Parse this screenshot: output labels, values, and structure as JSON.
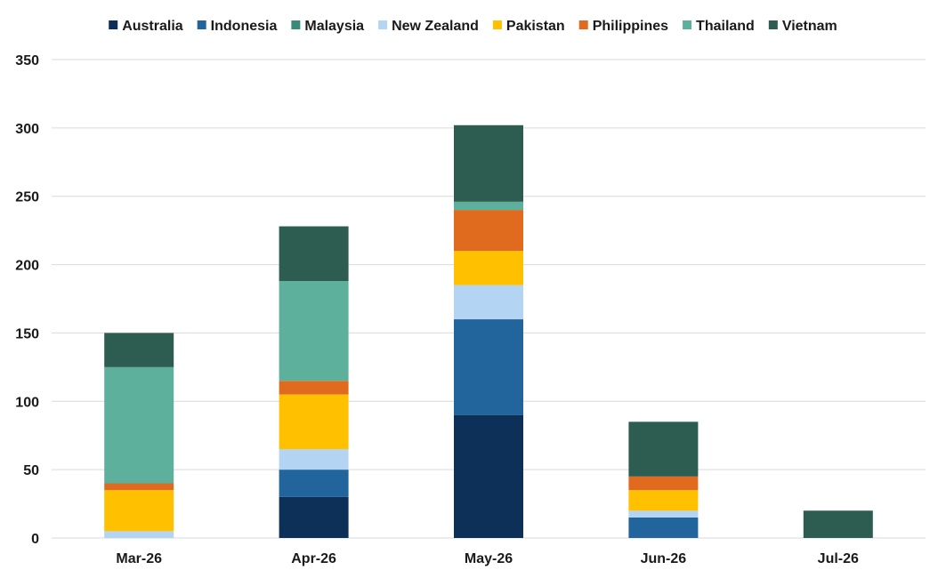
{
  "chart_data": {
    "type": "bar",
    "stacked": true,
    "title": "",
    "xlabel": "",
    "ylabel": "",
    "ylim": [
      0,
      350
    ],
    "yticks": [
      0,
      50,
      100,
      150,
      200,
      250,
      300,
      350
    ],
    "grid": true,
    "legend_position": "top",
    "categories": [
      "Mar-26",
      "Apr-26",
      "May-26",
      "Jun-26",
      "Jul-26"
    ],
    "series": [
      {
        "name": "Australia",
        "color": "#0d3058",
        "values": [
          0,
          30,
          90,
          0,
          0
        ]
      },
      {
        "name": "Indonesia",
        "color": "#21659c",
        "values": [
          0,
          20,
          70,
          15,
          0
        ]
      },
      {
        "name": "Malaysia",
        "color": "#3a8a7a",
        "values": [
          0,
          0,
          0,
          0,
          0
        ]
      },
      {
        "name": "New Zealand",
        "color": "#b3d4f2",
        "values": [
          5,
          15,
          25,
          5,
          0
        ]
      },
      {
        "name": "Pakistan",
        "color": "#ffc000",
        "values": [
          30,
          40,
          25,
          15,
          0
        ]
      },
      {
        "name": "Philippines",
        "color": "#e06b1f",
        "values": [
          5,
          10,
          30,
          10,
          0
        ]
      },
      {
        "name": "Thailand",
        "color": "#5db09c",
        "values": [
          85,
          73,
          6,
          0,
          0
        ]
      },
      {
        "name": "Vietnam",
        "color": "#2d5c50",
        "values": [
          25,
          40,
          56,
          40,
          20
        ]
      }
    ]
  }
}
